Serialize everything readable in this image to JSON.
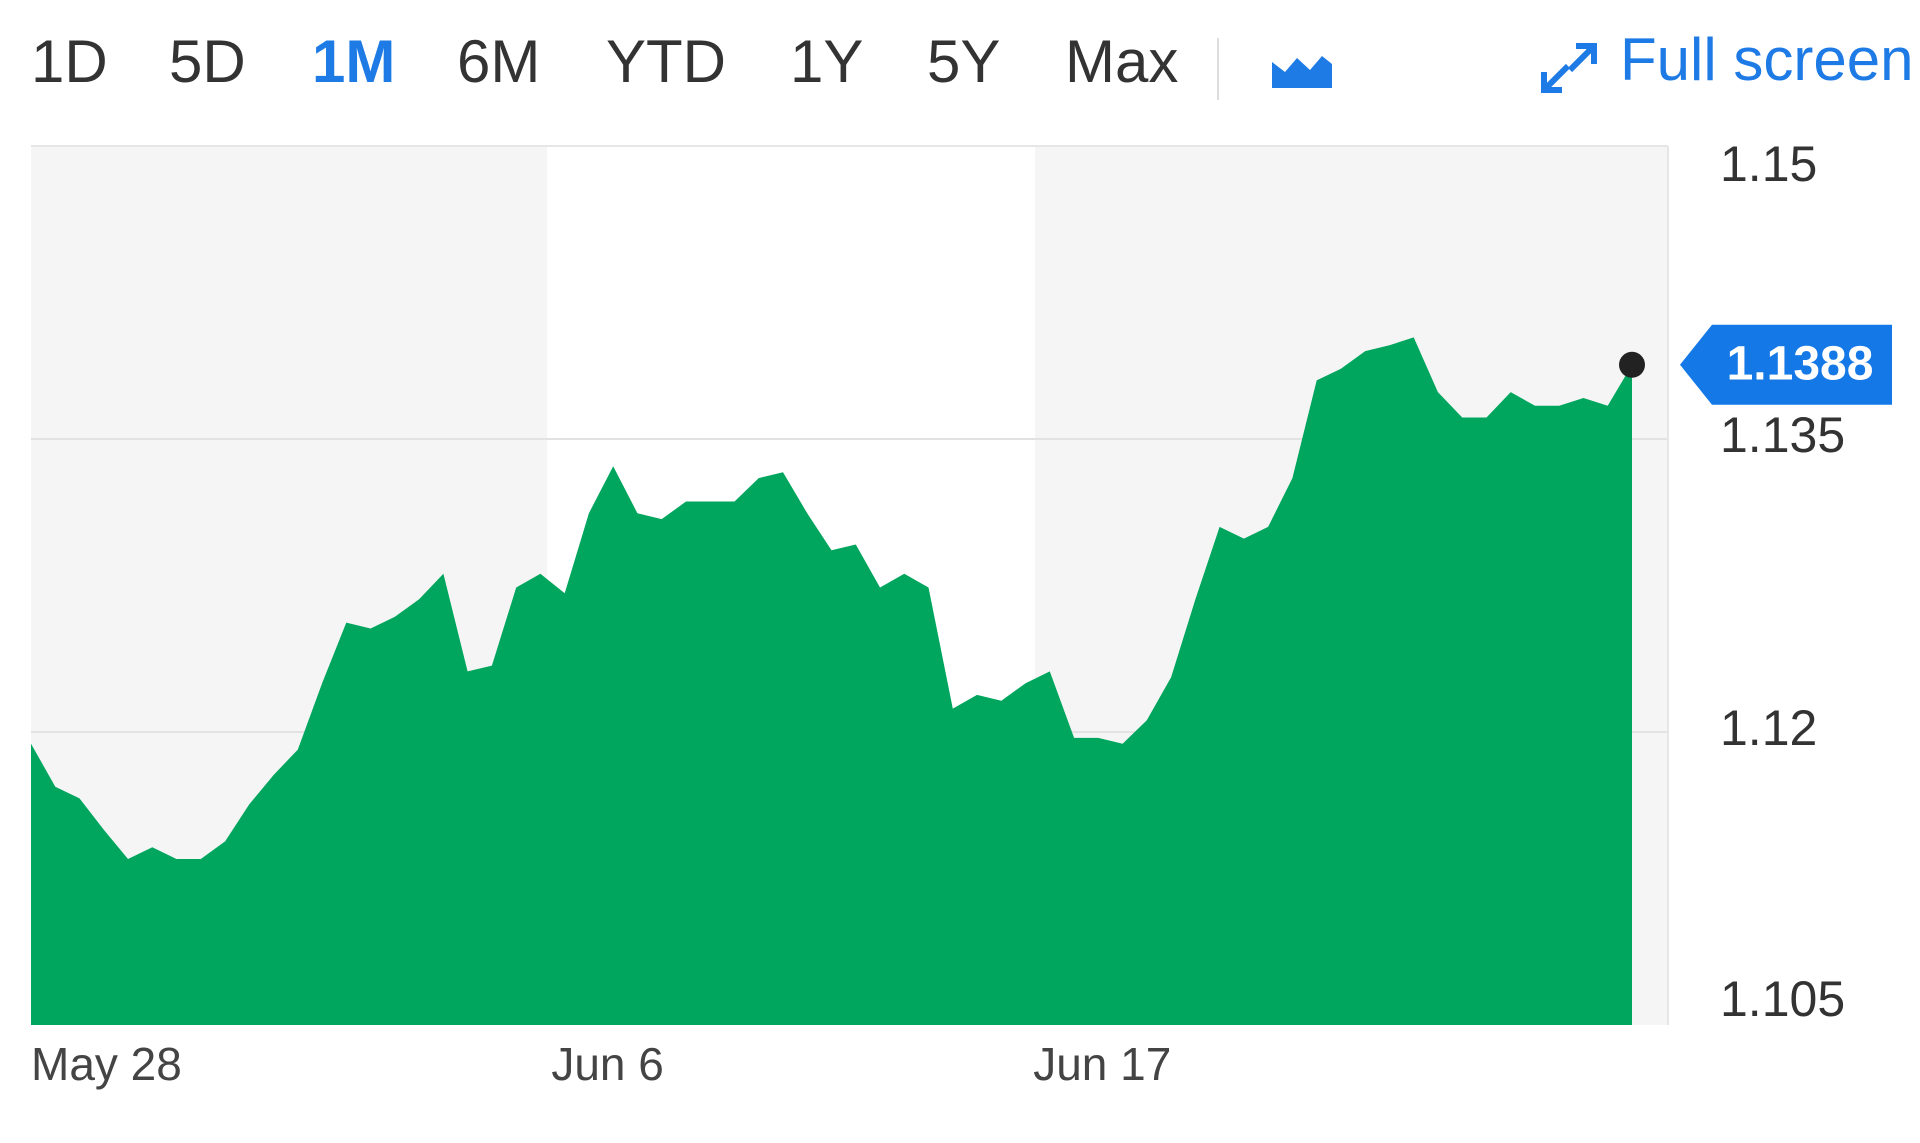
{
  "range_buttons": [
    "1D",
    "5D",
    "1M",
    "6M",
    "YTD",
    "1Y",
    "5Y",
    "Max"
  ],
  "selected_range": 2,
  "full_screen": "Full screen",
  "chart_data": {
    "type": "area",
    "color": "#00a65e",
    "values": [
      1.1194,
      1.1172,
      1.1166,
      1.115,
      1.1135,
      1.1141,
      1.1135,
      1.1135,
      1.1144,
      1.1163,
      1.1178,
      1.1191,
      1.1225,
      1.1256,
      1.1253,
      1.1259,
      1.1268,
      1.1281,
      1.1231,
      1.1234,
      1.1274,
      1.1281,
      1.1271,
      1.1312,
      1.1336,
      1.1312,
      1.1309,
      1.1318,
      1.1318,
      1.1318,
      1.133,
      1.1333,
      1.1312,
      1.1293,
      1.1296,
      1.1274,
      1.1281,
      1.1274,
      1.1212,
      1.1219,
      1.1216,
      1.1225,
      1.1231,
      1.1197,
      1.1197,
      1.1194,
      1.1206,
      1.1228,
      1.1268,
      1.1305,
      1.1299,
      1.1305,
      1.133,
      1.138,
      1.1386,
      1.1395,
      1.1398,
      1.1402,
      1.1374,
      1.1361,
      1.1361,
      1.1374,
      1.1367,
      1.1367,
      1.1371,
      1.1367,
      1.1388
    ],
    "xtick_labels": [
      "May 28",
      "Jun 6",
      "Jun 17"
    ],
    "ylim": [
      1.105,
      1.15
    ],
    "yticks": [
      1.105,
      1.12,
      1.135,
      1.15
    ],
    "grid": true,
    "last_price": 1.1388
  }
}
